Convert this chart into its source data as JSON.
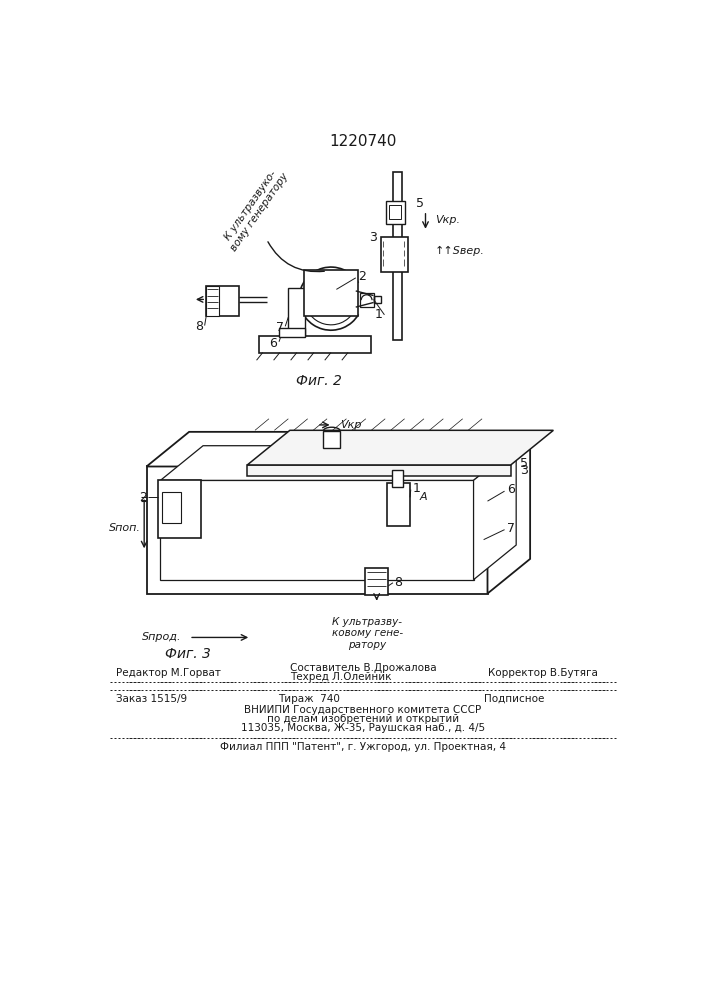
{
  "patent_number": "1220740",
  "bg_color": "#ffffff",
  "line_color": "#1a1a1a",
  "fig2_caption": "Фиг. 2",
  "fig3_caption": "Фиг. 3",
  "page_width": 7.07,
  "page_height": 10.0,
  "footer": {
    "editor": "Редактор М.Горват",
    "composer_label": "Составитель В.Дрожалова",
    "techred_label": "Техред Л.Олейник",
    "corrector_label": "Корректор В.Бутяга",
    "order": "Заказ 1515/9",
    "tirazh": "Тираж  740",
    "podpisnoe": "Подписное",
    "vniip1": "ВНИИПИ Государственного комитета СССР",
    "vniip2": "по делам изобретений и открытий",
    "vniip3": "113035, Москва, Ж-35, Раушская наб., д. 4/5",
    "filial": "Филиал ППП \"Патент\", г. Ужгород, ул. Проектная, 4"
  }
}
